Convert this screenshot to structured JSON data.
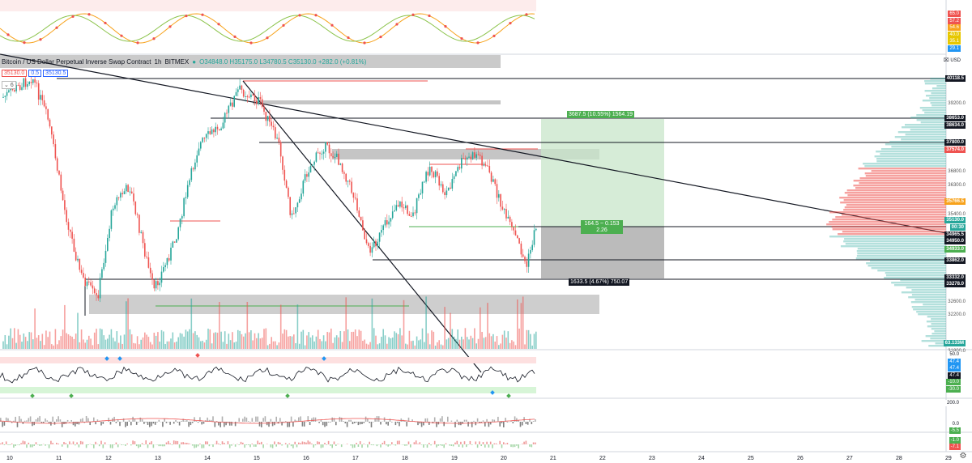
{
  "legend": {
    "title": "Bitcoin / US Dollar Perpetual Inverse Swap Contract",
    "interval": "1h",
    "exchange": "BITMEX",
    "ohlc": "O34848.0 H35175.0 L34780.5 C35130.0 +282.0 (+0.81%)"
  },
  "symbol_tags": {
    "bid": "35130.0",
    "spread": "0.5",
    "ask": "35130.5",
    "collapse": "6"
  },
  "top_indicator_scale": [
    {
      "label": "65.0",
      "color": "#ef5350"
    },
    {
      "label": "57.2",
      "color": "#ef5350"
    },
    {
      "label": "54.6",
      "color": "#f7a21b"
    },
    {
      "label": "40.0",
      "color": "#e6c700"
    },
    {
      "label": "35.1",
      "color": "#e6c700"
    },
    {
      "label": "29.1",
      "color": "#2196f3"
    }
  ],
  "price_axis": {
    "unit": "USD",
    "ticks": [
      "39200.0",
      "36800.0",
      "36300.0",
      "35400.0",
      "32600.0",
      "32200.0",
      "31800.0"
    ],
    "badges": [
      {
        "label": "40118.5",
        "bg": "#131722",
        "fg": "#ffffff"
      },
      {
        "label": "38653.0",
        "bg": "#131722",
        "fg": "#ffffff"
      },
      {
        "label": "38634.0",
        "bg": "#131722",
        "fg": "#ffffff"
      },
      {
        "label": "37800.0",
        "bg": "#131722",
        "fg": "#ffffff"
      },
      {
        "label": "37574.0",
        "bg": "#ef5350",
        "fg": "#ffffff"
      },
      {
        "label": "35766.5",
        "bg": "#f7a21b",
        "fg": "#ffffff"
      },
      {
        "label": "35130.0",
        "bg": "#26a69a",
        "fg": "#ffffff"
      },
      {
        "label": "00:30",
        "bg": "#26a69a",
        "fg": "#ffffff"
      },
      {
        "label": "34965.5",
        "bg": "#131722",
        "fg": "#ffffff"
      },
      {
        "label": "34950.0",
        "bg": "#131722",
        "fg": "#ffffff"
      },
      {
        "label": "34933.0",
        "bg": "#4caf50",
        "fg": "#ffffff"
      },
      {
        "label": "33862.0",
        "bg": "#131722",
        "fg": "#ffffff"
      },
      {
        "label": "33332.0",
        "bg": "#131722",
        "fg": "#ffffff"
      },
      {
        "label": "33278.0",
        "bg": "#131722",
        "fg": "#ffffff"
      },
      {
        "label": "63.133M",
        "bg": "#26a69a",
        "fg": "#ffffff"
      }
    ]
  },
  "position_tool": {
    "target": "3687.5 (10.55%) 1564.19",
    "ratio_line1": "164.5 ~ 0.153",
    "ratio_line2": "2.26",
    "stop": "1633.5 (4.67%) 750.07"
  },
  "rsi_scale": [
    {
      "label": "50.0",
      "bg": "#ffffff",
      "fg": "#131722"
    },
    {
      "label": "47.4",
      "bg": "#2196f3",
      "fg": "#ffffff"
    },
    {
      "label": "47.4",
      "bg": "#2196f3",
      "fg": "#ffffff"
    },
    {
      "label": "47.4",
      "bg": "#131722",
      "fg": "#ffffff"
    },
    {
      "label": "-10.0",
      "bg": "#4caf50",
      "fg": "#ffffff"
    },
    {
      "label": "-30.0",
      "bg": "#4caf50",
      "fg": "#ffffff"
    }
  ],
  "macd_scale": [
    {
      "label": "200.0",
      "bg": "#ffffff",
      "fg": "#131722"
    },
    {
      "label": "0.0",
      "bg": "#ffffff",
      "fg": "#131722"
    },
    {
      "label": "-5.5",
      "bg": "#4caf50",
      "fg": "#ffffff"
    }
  ],
  "bottom_scale": [
    {
      "label": "-1.0",
      "bg": "#4caf50",
      "fg": "#ffffff"
    },
    {
      "label": "-7.1",
      "bg": "#ef5350",
      "fg": "#ffffff"
    }
  ],
  "time_axis": [
    "10",
    "11",
    "12",
    "13",
    "14",
    "15",
    "16",
    "17",
    "18",
    "19",
    "20",
    "21",
    "22",
    "23",
    "24",
    "25",
    "26",
    "27",
    "28",
    "29"
  ],
  "colors": {
    "up": "#26a69a",
    "down": "#ef5350",
    "zone": "#9e9e9e",
    "target": "#4caf50"
  }
}
